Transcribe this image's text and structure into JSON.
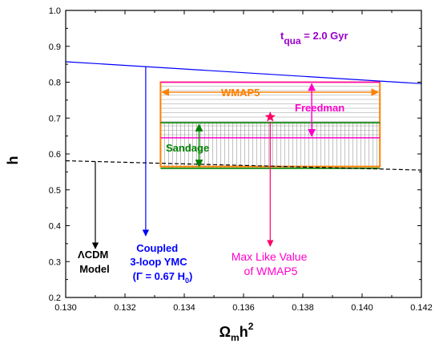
{
  "chart_data": {
    "type": "line",
    "xlabel": "Ω",
    "xlabel_sub": "m",
    "xlabel_base": "h",
    "xlabel_sup": "2",
    "ylabel": "h",
    "xlim": [
      0.13,
      0.142
    ],
    "ylim": [
      0.2,
      1.0
    ],
    "xticks": [
      0.13,
      0.132,
      0.134,
      0.136,
      0.138,
      0.14,
      0.142
    ],
    "xtick_labels": [
      "0.130",
      "0.132",
      "0.134",
      "0.136",
      "0.138",
      "0.140",
      "0.142"
    ],
    "yticks": [
      0.2,
      0.3,
      0.4,
      0.5,
      0.6,
      0.7,
      0.8,
      0.9,
      1.0
    ],
    "ytick_labels": [
      "0.2",
      "0.3",
      "0.4",
      "0.5",
      "0.6",
      "0.7",
      "0.8",
      "0.9",
      "1.0"
    ],
    "series": [
      {
        "name": "Coupled 3-loop YMC",
        "style": "solid",
        "color": "#0000ff",
        "x": [
          0.13,
          0.142
        ],
        "y": [
          0.857,
          0.796
        ]
      },
      {
        "name": "ΛCDM Model",
        "style": "dashed",
        "color": "#000000",
        "x": [
          0.13,
          0.142
        ],
        "y": [
          0.581,
          0.555
        ]
      }
    ],
    "regions": [
      {
        "name": "WMAP5",
        "color": "#ff8000",
        "x": [
          0.1332,
          0.1406
        ],
        "y": [
          0.565,
          0.8
        ]
      },
      {
        "name": "Freedman",
        "color": "#ff00cc",
        "x": [
          0.1332,
          0.1406
        ],
        "y": [
          0.645,
          0.8
        ]
      },
      {
        "name": "Sandage",
        "color": "#008000",
        "x": [
          0.1332,
          0.1406
        ],
        "y": [
          0.56,
          0.687
        ]
      }
    ],
    "max_like_point": {
      "x": 0.1369,
      "y": 0.703,
      "color": "#ff0066"
    },
    "annotations": {
      "tqua": {
        "t": "t",
        "sub": "qua",
        "rest": " = 2.0 Gyr",
        "color": "#9900cc"
      },
      "wmap5": "WMAP5",
      "freedman": "Freedman",
      "sandage": "Sandage",
      "lcdm": [
        "ΛCDM",
        "Model"
      ],
      "ymc": [
        "Coupled",
        "3-loop YMC"
      ],
      "gamma": {
        "open": "(",
        "symbol": "Γ",
        "eq": " = 0.67 H",
        "sub": "0",
        "close": ")"
      },
      "maxlike": [
        "Max Like Value",
        "of  WMAP5"
      ]
    }
  }
}
